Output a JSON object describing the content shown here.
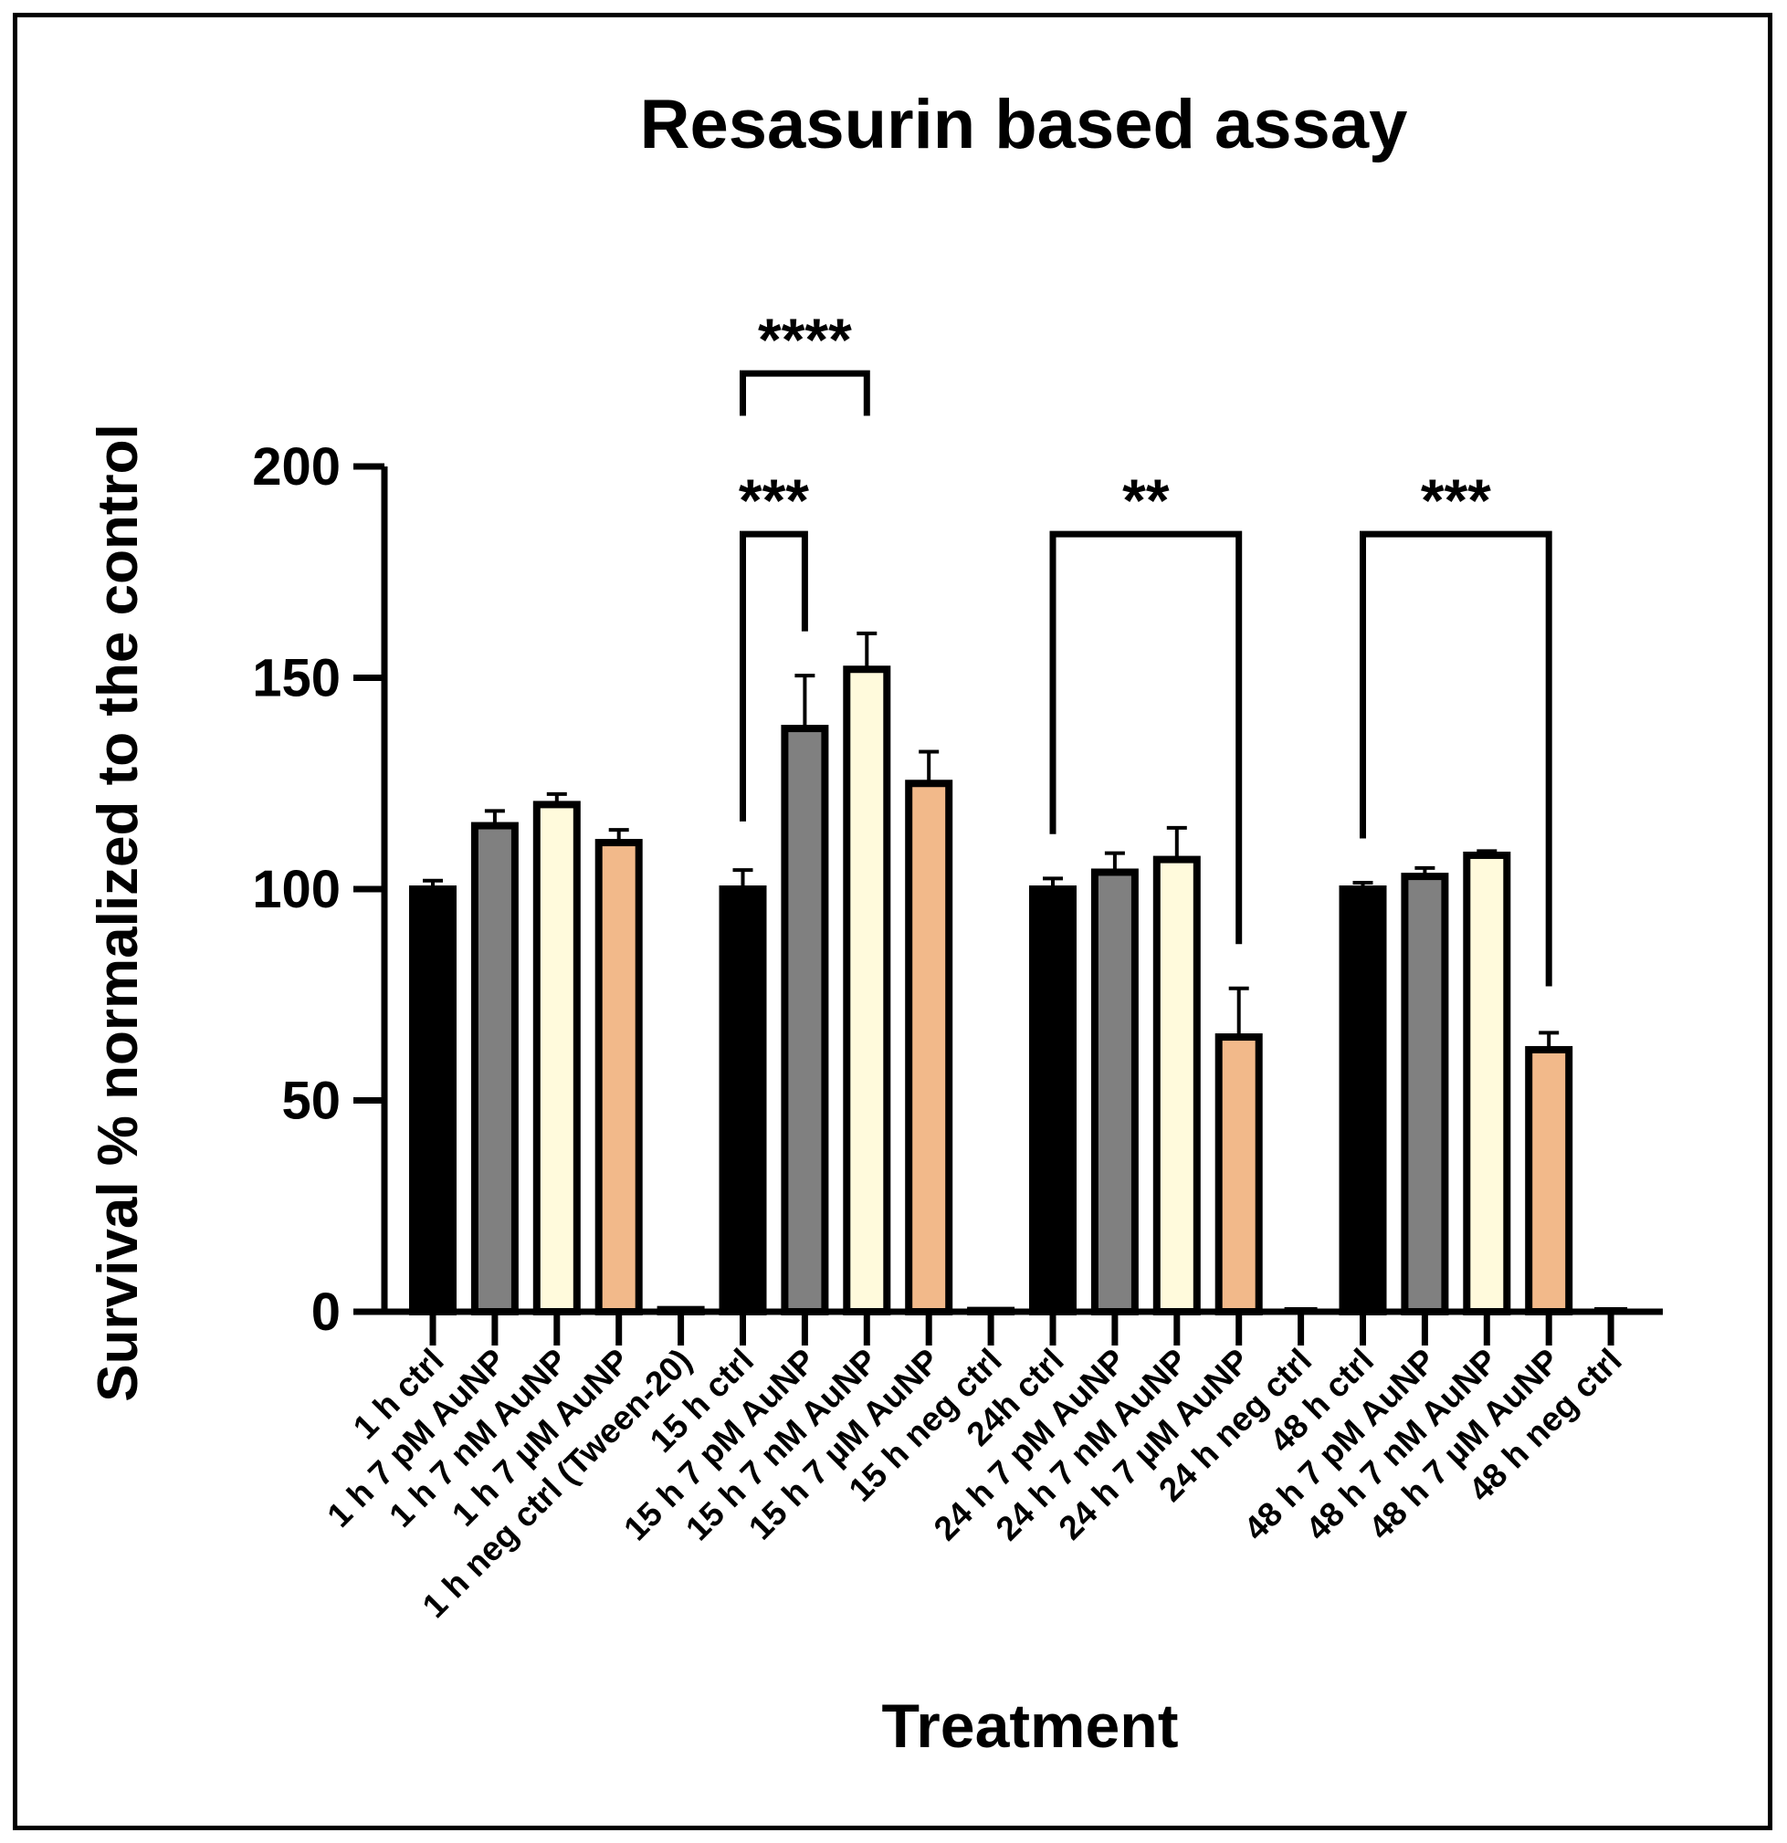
{
  "chart_data": {
    "type": "bar",
    "title": "Resasurin based assay",
    "xlabel": "Treatment",
    "ylabel": "Survival % normalized to the control",
    "ylim": [
      0,
      200
    ],
    "yticks": [
      0,
      50,
      100,
      150,
      200
    ],
    "grid": false,
    "legend": "none",
    "colors": {
      "ctrl": "#000000",
      "pM": "#808080",
      "nM": "#fffadc",
      "uM": "#f2b98a",
      "outline": "#000000"
    },
    "categories": [
      "1 h ctrl",
      "1 h 7 pM AuNP",
      "1 h 7 nM AuNP",
      "1 h 7 µM AuNP",
      "1 h neg ctrl (Tween-20)",
      "15 h ctrl",
      "15 h 7 pM AuNP",
      "15 h 7 nM AuNP",
      "15 h 7 µM AuNP",
      "15 h neg ctrl",
      "24h ctrl",
      "24 h 7 pM AuNP",
      "24 h 7 nM AuNP",
      "24 h 7 µM AuNP",
      "24 h neg ctrl",
      "48 h ctrl",
      "48 h 7 pM AuNP",
      "48 h 7 nM AuNP",
      "48 h 7 µM AuNP",
      "48 h neg ctrl"
    ],
    "values": [
      100,
      115,
      120,
      111,
      0.5,
      100,
      138,
      152,
      125,
      0.3,
      100,
      104,
      107,
      65,
      0,
      100,
      103,
      108,
      62,
      0
    ],
    "errors": [
      2,
      3.5,
      2.5,
      3,
      0,
      4.5,
      12.5,
      8.5,
      7.5,
      0,
      2.5,
      4.5,
      7.5,
      11.5,
      0,
      1.5,
      2,
      1,
      4,
      0
    ],
    "fill_groups": [
      "ctrl",
      "pM",
      "nM",
      "uM",
      "ctrl",
      "ctrl",
      "pM",
      "nM",
      "uM",
      "ctrl",
      "ctrl",
      "pM",
      "nM",
      "uM",
      "ctrl",
      "ctrl",
      "pM",
      "nM",
      "uM",
      "ctrl"
    ],
    "annotations": [
      {
        "from": 5,
        "to": 7,
        "label": "****",
        "bracket_y": 222,
        "left_end": 212,
        "right_end": 212
      },
      {
        "from": 5,
        "to": 6,
        "label": "***",
        "bracket_y": 184,
        "left_end": 116,
        "right_end": 161
      },
      {
        "from": 10,
        "to": 13,
        "label": "**",
        "bracket_y": 184,
        "left_end": 113,
        "right_end": 87
      },
      {
        "from": 15,
        "to": 18,
        "label": "***",
        "bracket_y": 184,
        "left_end": 112,
        "right_end": 77
      }
    ]
  }
}
